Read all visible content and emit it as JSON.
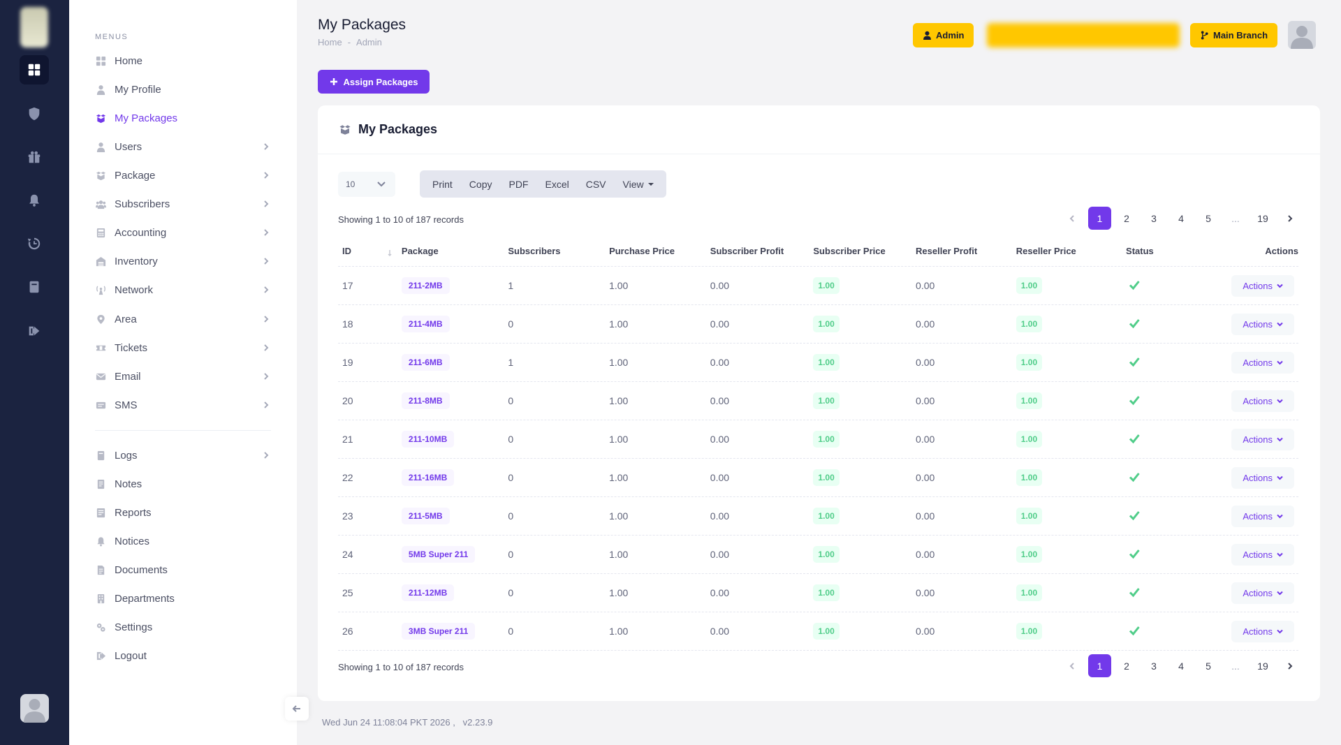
{
  "sidebar": {
    "section_label": "MENUS",
    "items": [
      {
        "label": "Home",
        "icon": "home-icon",
        "chevron": false,
        "active": false
      },
      {
        "label": "My Profile",
        "icon": "user-icon",
        "chevron": false,
        "active": false
      },
      {
        "label": "My Packages",
        "icon": "package-box-icon",
        "chevron": false,
        "active": true
      },
      {
        "label": "Users",
        "icon": "user-icon",
        "chevron": true,
        "active": false
      },
      {
        "label": "Package",
        "icon": "package-box-icon",
        "chevron": true,
        "active": false
      },
      {
        "label": "Subscribers",
        "icon": "users-group-icon",
        "chevron": true,
        "active": false
      },
      {
        "label": "Accounting",
        "icon": "calculator-icon",
        "chevron": true,
        "active": false
      },
      {
        "label": "Inventory",
        "icon": "warehouse-icon",
        "chevron": true,
        "active": false
      },
      {
        "label": "Network",
        "icon": "antenna-icon",
        "chevron": true,
        "active": false
      },
      {
        "label": "Area",
        "icon": "location-icon",
        "chevron": true,
        "active": false
      },
      {
        "label": "Tickets",
        "icon": "ticket-icon",
        "chevron": true,
        "active": false
      },
      {
        "label": "Email",
        "icon": "envelope-icon",
        "chevron": true,
        "active": false
      },
      {
        "label": "SMS",
        "icon": "message-icon",
        "chevron": true,
        "active": false
      }
    ],
    "items2": [
      {
        "label": "Logs",
        "icon": "book-icon",
        "chevron": true
      },
      {
        "label": "Notes",
        "icon": "note-icon",
        "chevron": false
      },
      {
        "label": "Reports",
        "icon": "report-icon",
        "chevron": false
      },
      {
        "label": "Notices",
        "icon": "bell-icon",
        "chevron": false
      },
      {
        "label": "Documents",
        "icon": "document-icon",
        "chevron": false
      },
      {
        "label": "Departments",
        "icon": "building-icon",
        "chevron": false
      },
      {
        "label": "Settings",
        "icon": "gears-icon",
        "chevron": false
      },
      {
        "label": "Logout",
        "icon": "logout-icon",
        "chevron": false
      }
    ]
  },
  "rail": {
    "icons": [
      "dashboard-icon",
      "shield-icon",
      "gift-icon",
      "bell-icon",
      "history-icon",
      "book-icon",
      "logout-icon"
    ]
  },
  "header": {
    "title": "My Packages",
    "breadcrumb": [
      "Home",
      "-",
      "Admin"
    ],
    "admin_label": "Admin",
    "branch_label": "Main Branch"
  },
  "assign_button": "Assign Packages",
  "card": {
    "title": "My Packages",
    "page_length": "10",
    "export_buttons": [
      "Print",
      "Copy",
      "PDF",
      "Excel",
      "CSV",
      "View"
    ],
    "records_info": "Showing 1 to 10 of 187 records",
    "pagination": [
      "1",
      "2",
      "3",
      "4",
      "5",
      "...",
      "19"
    ],
    "current_page": "1",
    "columns": [
      "ID",
      "Package",
      "Subscribers",
      "Purchase Price",
      "Subscriber Profit",
      "Subscriber Price",
      "Reseller Profit",
      "Reseller Price",
      "Status",
      "Actions"
    ],
    "rows": [
      {
        "id": "17",
        "package": "211-2MB",
        "subscribers": "1",
        "purchase_price": "1.00",
        "subscriber_profit": "0.00",
        "subscriber_price": "1.00",
        "reseller_profit": "0.00",
        "reseller_price": "1.00",
        "action": "Actions"
      },
      {
        "id": "18",
        "package": "211-4MB",
        "subscribers": "0",
        "purchase_price": "1.00",
        "subscriber_profit": "0.00",
        "subscriber_price": "1.00",
        "reseller_profit": "0.00",
        "reseller_price": "1.00",
        "action": "Actions"
      },
      {
        "id": "19",
        "package": "211-6MB",
        "subscribers": "1",
        "purchase_price": "1.00",
        "subscriber_profit": "0.00",
        "subscriber_price": "1.00",
        "reseller_profit": "0.00",
        "reseller_price": "1.00",
        "action": "Actions"
      },
      {
        "id": "20",
        "package": "211-8MB",
        "subscribers": "0",
        "purchase_price": "1.00",
        "subscriber_profit": "0.00",
        "subscriber_price": "1.00",
        "reseller_profit": "0.00",
        "reseller_price": "1.00",
        "action": "Actions"
      },
      {
        "id": "21",
        "package": "211-10MB",
        "subscribers": "0",
        "purchase_price": "1.00",
        "subscriber_profit": "0.00",
        "subscriber_price": "1.00",
        "reseller_profit": "0.00",
        "reseller_price": "1.00",
        "action": "Actions"
      },
      {
        "id": "22",
        "package": "211-16MB",
        "subscribers": "0",
        "purchase_price": "1.00",
        "subscriber_profit": "0.00",
        "subscriber_price": "1.00",
        "reseller_profit": "0.00",
        "reseller_price": "1.00",
        "action": "Actions"
      },
      {
        "id": "23",
        "package": "211-5MB",
        "subscribers": "0",
        "purchase_price": "1.00",
        "subscriber_profit": "0.00",
        "subscriber_price": "1.00",
        "reseller_profit": "0.00",
        "reseller_price": "1.00",
        "action": "Actions"
      },
      {
        "id": "24",
        "package": "5MB Super 211",
        "subscribers": "0",
        "purchase_price": "1.00",
        "subscriber_profit": "0.00",
        "subscriber_price": "1.00",
        "reseller_profit": "0.00",
        "reseller_price": "1.00",
        "action": "Actions"
      },
      {
        "id": "25",
        "package": "211-12MB",
        "subscribers": "0",
        "purchase_price": "1.00",
        "subscriber_profit": "0.00",
        "subscriber_price": "1.00",
        "reseller_profit": "0.00",
        "reseller_price": "1.00",
        "action": "Actions"
      },
      {
        "id": "26",
        "package": "3MB Super 211",
        "subscribers": "0",
        "purchase_price": "1.00",
        "subscriber_profit": "0.00",
        "subscriber_price": "1.00",
        "reseller_profit": "0.00",
        "reseller_price": "1.00",
        "action": "Actions"
      }
    ]
  },
  "footer": {
    "datetime": "Wed Jun 24 11:08:04 PKT 2026 ,",
    "version": "v2.23.9"
  },
  "colors": {
    "accent": "#7239ea",
    "warning": "#ffc700",
    "success": "#50cd89",
    "rail_bg": "#1b2340"
  }
}
